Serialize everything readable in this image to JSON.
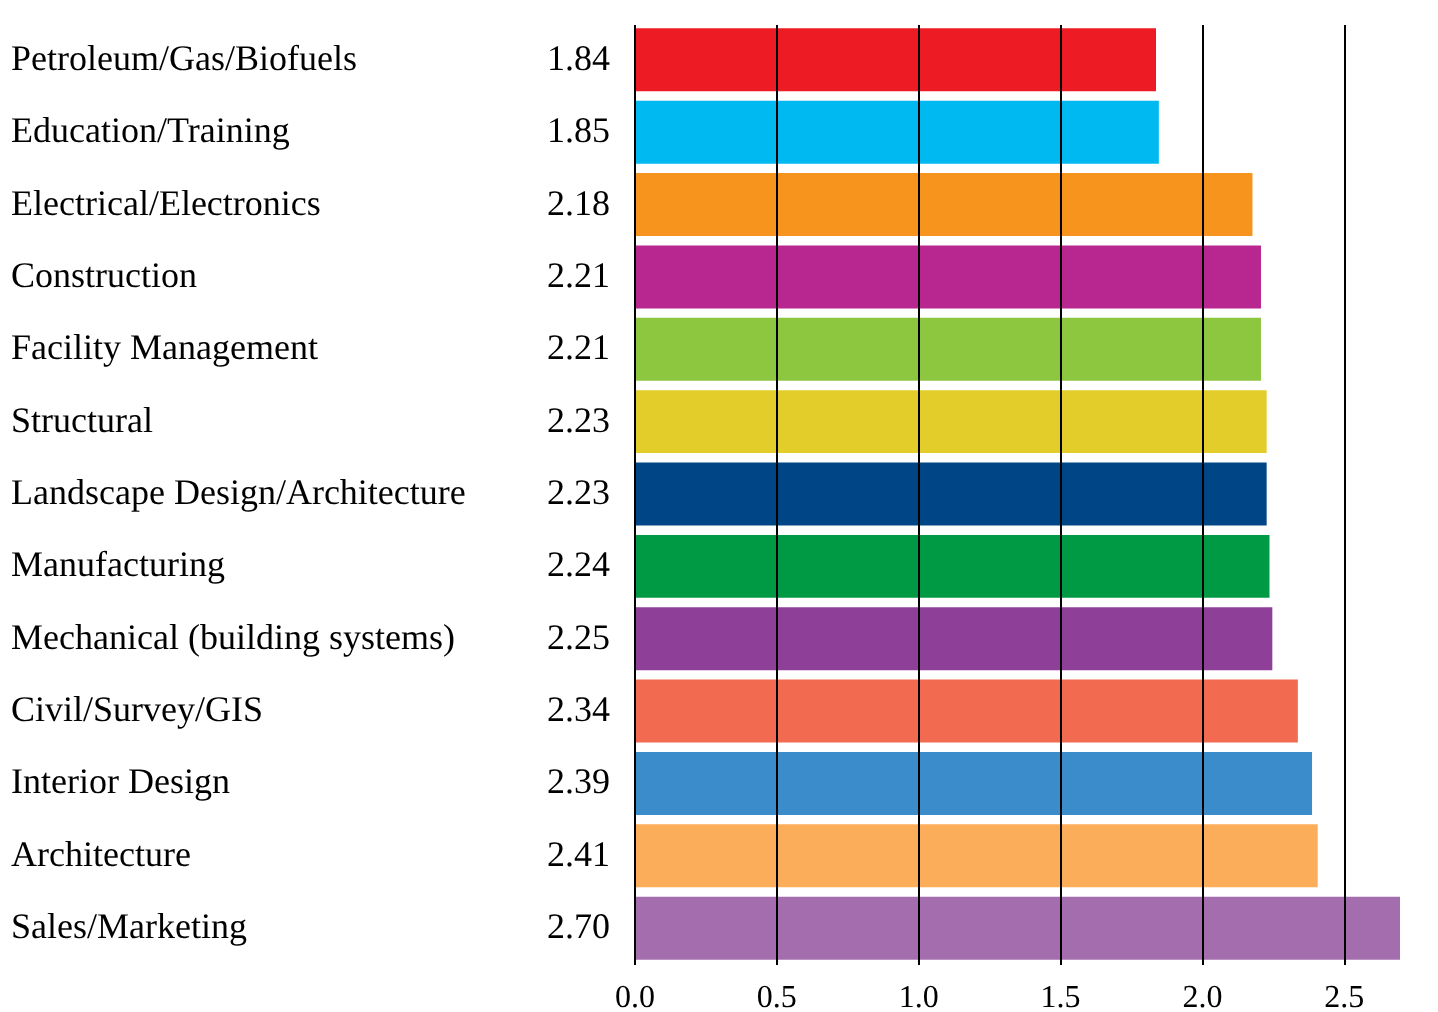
{
  "chart_data": {
    "type": "bar",
    "orientation": "horizontal",
    "categories": [
      "Petroleum/Gas/Biofuels",
      "Education/Training",
      "Electrical/Electronics",
      "Construction",
      "Facility Management",
      "Structural",
      "Landscape Design/Architecture",
      "Manufacturing",
      "Mechanical (building systems)",
      "Civil/Survey/GIS",
      "Interior Design",
      "Architecture",
      "Sales/Marketing"
    ],
    "values": [
      1.84,
      1.85,
      2.18,
      2.21,
      2.21,
      2.23,
      2.23,
      2.24,
      2.25,
      2.34,
      2.39,
      2.41,
      2.7
    ],
    "value_labels": [
      "1.84",
      "1.85",
      "2.18",
      "2.21",
      "2.21",
      "2.23",
      "2.23",
      "2.24",
      "2.25",
      "2.34",
      "2.39",
      "2.41",
      "2.70"
    ],
    "colors": [
      "#ed1c24",
      "#00b9f1",
      "#f7941d",
      "#b8268f",
      "#8dc63f",
      "#e2cd2a",
      "#004586",
      "#009a44",
      "#8e3f98",
      "#f26a4f",
      "#3b8ccb",
      "#fbad5a",
      "#a46eae"
    ],
    "xlim": [
      0,
      2.7
    ],
    "xticks": [
      {
        "value": 0,
        "label": "0.0"
      },
      {
        "value": 0.5,
        "label": "0.5"
      },
      {
        "value": 1,
        "label": "1.0"
      },
      {
        "value": 1.5,
        "label": "1.5"
      },
      {
        "value": 2,
        "label": "2.0"
      },
      {
        "value": 2.5,
        "label": "2.5"
      }
    ],
    "grid": "x"
  }
}
